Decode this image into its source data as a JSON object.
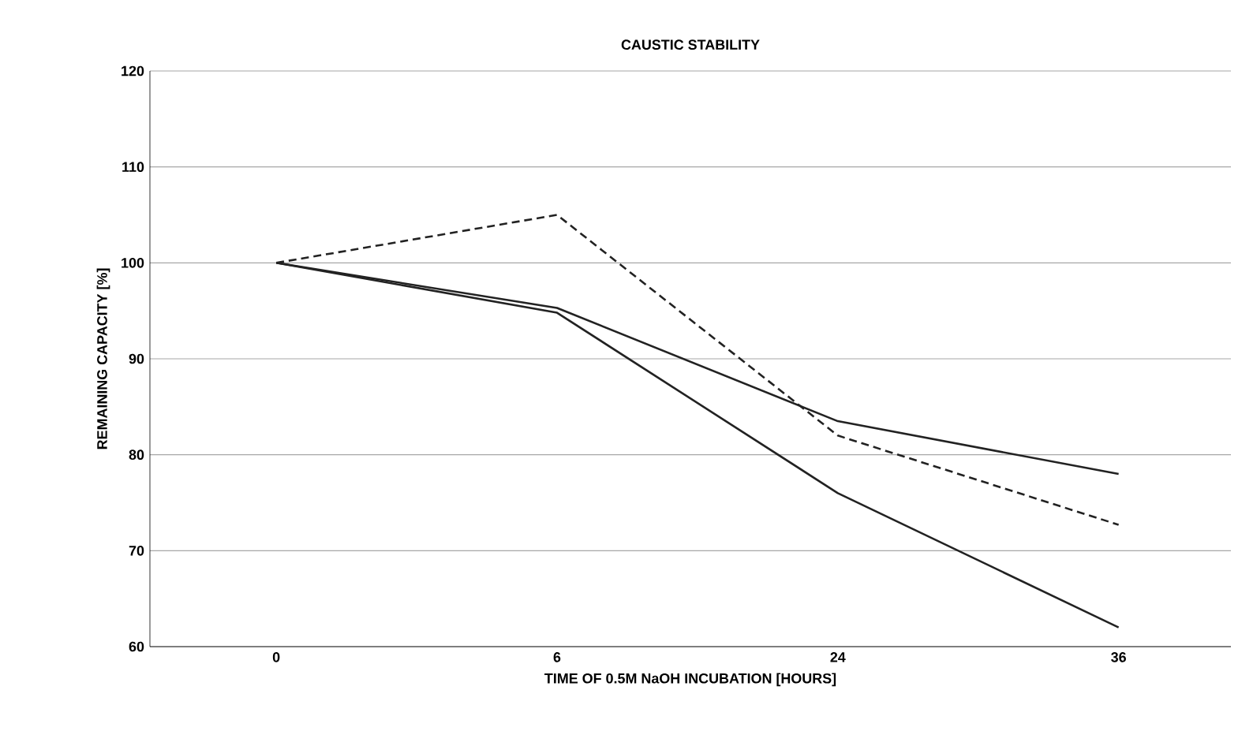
{
  "chart_data": {
    "type": "line",
    "title": "CAUSTIC STABILITY",
    "xlabel": "TIME OF 0.5M NaOH INCUBATION [HOURS]",
    "ylabel": "REMAINING CAPACITY [%]",
    "categories": [
      "0",
      "6",
      "24",
      "36"
    ],
    "series": [
      {
        "color": "#222222",
        "line_style": "dashed",
        "values": [
          100,
          105,
          82,
          72.7
        ]
      },
      {
        "color": "#222222",
        "line_style": "solid",
        "values": [
          100,
          95.3,
          83.5,
          78
        ]
      },
      {
        "color": "#222222",
        "line_style": "solid",
        "values": [
          100,
          94.8,
          76,
          62
        ]
      }
    ],
    "ylim": [
      60,
      120
    ],
    "yticks": [
      60,
      70,
      80,
      90,
      100,
      110,
      120
    ],
    "grid": "y",
    "marker": "none"
  }
}
